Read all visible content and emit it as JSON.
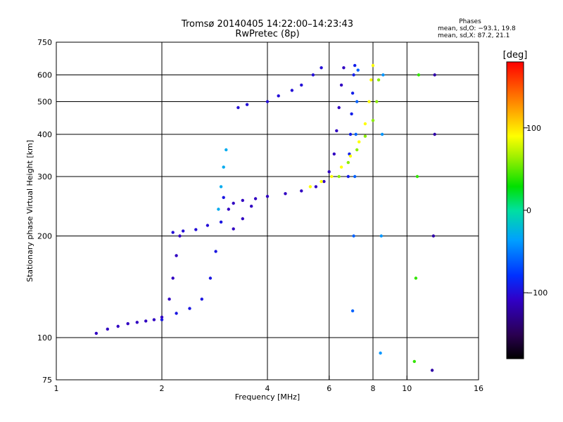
{
  "chart_data": {
    "type": "scatter",
    "title": "Tromsø 20140405 14:22:00–14:23:43",
    "subtitle": "RwPretec (8p)",
    "xlabel": "Frequency [MHz]",
    "ylabel": "Stationary phase Virtual Height [km]",
    "xscale": "log",
    "yscale": "log",
    "xlim": [
      1,
      16
    ],
    "ylim": [
      75,
      750
    ],
    "xticks": [
      1,
      2,
      4,
      6,
      8,
      10,
      16
    ],
    "xtick_labels": [
      "1",
      "2",
      "4",
      "6",
      "8",
      "10",
      "16"
    ],
    "yticks": [
      75,
      100,
      200,
      300,
      400,
      500,
      600,
      750
    ],
    "ytick_labels": [
      "75",
      "100",
      "200",
      "300",
      "400",
      "500",
      "600",
      "750"
    ],
    "x_gridlines": [
      2,
      4,
      6,
      8,
      10
    ],
    "y_gridlines": [
      100,
      200,
      300,
      400,
      500,
      600
    ],
    "grid": true,
    "legend": {
      "title": "Phases",
      "lines": [
        "mean, sd,O: −93.1, 19.8",
        "mean, sd,X:  87.2, 21.1"
      ]
    },
    "colorbar": {
      "label": "[deg]",
      "range": [
        -180,
        180
      ],
      "ticks": [
        100,
        0,
        -100
      ],
      "tick_labels": [
        "100",
        "0",
        "−100"
      ],
      "colormap": "rainbow"
    },
    "series": [
      {
        "traces": [
          {
            "phase": -110,
            "points": [
              [
                1.3,
                103
              ],
              [
                1.4,
                106
              ],
              [
                1.5,
                108
              ],
              [
                1.6,
                110
              ],
              [
                1.7,
                111
              ],
              [
                1.8,
                112
              ],
              [
                1.9,
                113
              ],
              [
                2.0,
                115
              ],
              [
                2.1,
                130
              ],
              [
                2.15,
                150
              ],
              [
                2.2,
                175
              ],
              [
                2.25,
                200
              ]
            ]
          },
          {
            "phase": -100,
            "points": [
              [
                2.15,
                205
              ],
              [
                2.3,
                207
              ],
              [
                2.5,
                209
              ],
              [
                2.7,
                215
              ]
            ]
          },
          {
            "phase": -95,
            "points": [
              [
                2.0,
                113
              ],
              [
                2.2,
                118
              ],
              [
                2.4,
                122
              ],
              [
                2.6,
                130
              ],
              [
                2.75,
                150
              ],
              [
                2.85,
                180
              ],
              [
                2.95,
                220
              ],
              [
                3.0,
                260
              ]
            ]
          },
          {
            "phase": -30,
            "points": [
              [
                2.9,
                240
              ],
              [
                2.95,
                280
              ],
              [
                3.0,
                320
              ],
              [
                3.05,
                360
              ]
            ]
          },
          {
            "phase": -110,
            "points": [
              [
                3.1,
                240
              ],
              [
                3.2,
                250
              ],
              [
                3.4,
                255
              ],
              [
                3.7,
                258
              ],
              [
                4.0,
                262
              ],
              [
                4.5,
                267
              ],
              [
                5.0,
                272
              ],
              [
                5.5,
                280
              ],
              [
                5.8,
                290
              ],
              [
                6.0,
                310
              ],
              [
                6.2,
                350
              ],
              [
                6.3,
                410
              ],
              [
                6.4,
                480
              ],
              [
                6.5,
                560
              ],
              [
                6.6,
                630
              ]
            ]
          },
          {
            "phase": -110,
            "points": [
              [
                3.2,
                210
              ],
              [
                3.4,
                225
              ],
              [
                3.6,
                245
              ]
            ]
          },
          {
            "phase": -100,
            "points": [
              [
                3.3,
                480
              ],
              [
                3.5,
                490
              ],
              [
                4.0,
                500
              ],
              [
                4.3,
                520
              ],
              [
                4.7,
                540
              ],
              [
                5.0,
                560
              ],
              [
                5.4,
                600
              ],
              [
                5.7,
                630
              ]
            ]
          },
          {
            "phase": -90,
            "points": [
              [
                6.8,
                300
              ],
              [
                6.85,
                350
              ],
              [
                6.9,
                400
              ],
              [
                6.95,
                460
              ],
              [
                7.0,
                530
              ],
              [
                7.05,
                600
              ],
              [
                7.1,
                640
              ]
            ]
          },
          {
            "phase": 90,
            "points": [
              [
                5.3,
                280
              ],
              [
                5.7,
                290
              ],
              [
                6.1,
                300
              ],
              [
                6.5,
                320
              ],
              [
                6.9,
                345
              ],
              [
                7.3,
                380
              ],
              [
                7.6,
                430
              ],
              [
                7.8,
                500
              ],
              [
                7.9,
                580
              ],
              [
                8.0,
                640
              ]
            ]
          },
          {
            "phase": 60,
            "points": [
              [
                6.4,
                300
              ],
              [
                6.8,
                330
              ],
              [
                7.2,
                360
              ],
              [
                7.6,
                395
              ],
              [
                8.0,
                440
              ],
              [
                8.2,
                500
              ],
              [
                8.3,
                580
              ]
            ]
          },
          {
            "phase": -60,
            "points": [
              [
                7.0,
                120
              ],
              [
                7.05,
                200
              ],
              [
                7.1,
                300
              ],
              [
                7.15,
                400
              ],
              [
                7.2,
                500
              ],
              [
                7.25,
                620
              ]
            ]
          },
          {
            "phase": -40,
            "points": [
              [
                8.4,
                90
              ],
              [
                8.45,
                200
              ],
              [
                8.5,
                400
              ],
              [
                8.55,
                600
              ]
            ]
          },
          {
            "phase": 40,
            "points": [
              [
                10.5,
                85
              ],
              [
                10.6,
                150
              ],
              [
                10.7,
                300
              ],
              [
                10.8,
                600
              ]
            ]
          },
          {
            "phase": -120,
            "points": [
              [
                11.8,
                80
              ],
              [
                11.9,
                200
              ],
              [
                12.0,
                400
              ],
              [
                12.0,
                600
              ]
            ]
          }
        ]
      }
    ]
  }
}
